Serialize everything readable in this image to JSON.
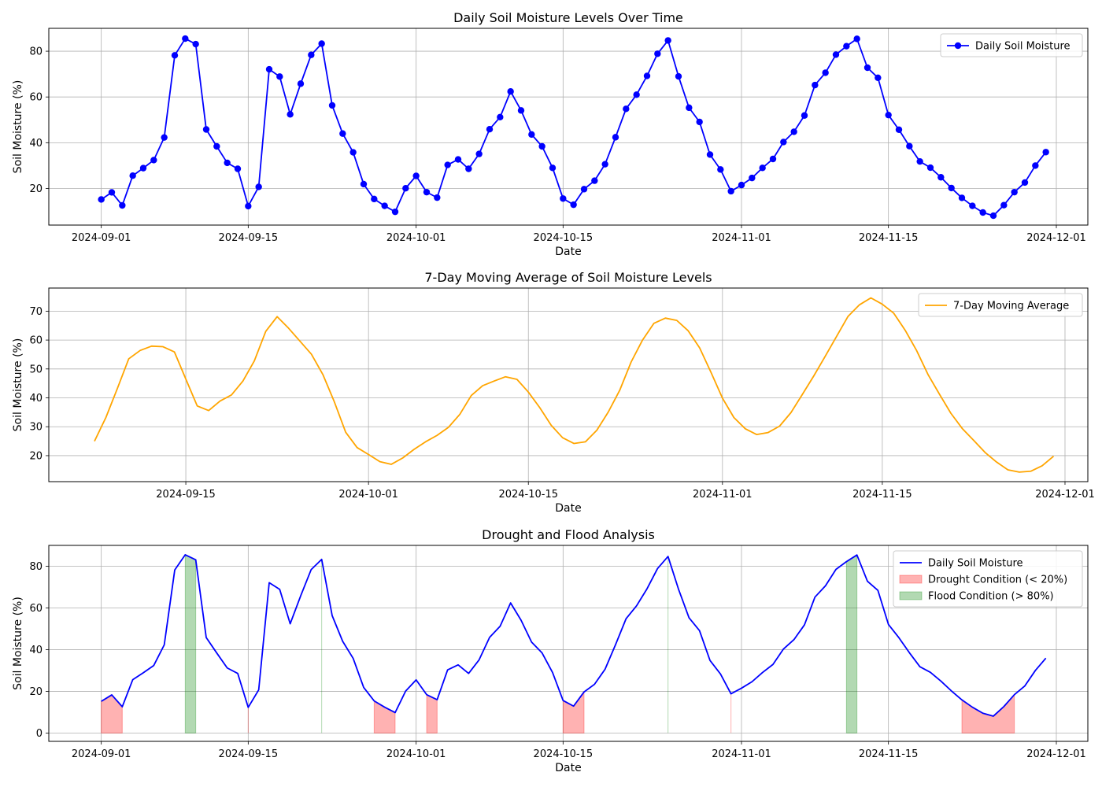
{
  "chart_data": [
    {
      "type": "line",
      "title": "Daily Soil Moisture Levels Over Time",
      "xlabel": "Date",
      "ylabel": "Soil Moisture (%)",
      "x_start": "2024-09-01",
      "xlim": [
        "2024-08-27",
        "2024-12-04"
      ],
      "ylim": [
        4,
        90
      ],
      "xticks": [
        "2024-09-01",
        "2024-09-15",
        "2024-10-01",
        "2024-10-15",
        "2024-11-01",
        "2024-11-15",
        "2024-12-01"
      ],
      "yticks": [
        20,
        40,
        60,
        80
      ],
      "grid": true,
      "legend": "top-right",
      "series": [
        {
          "name": "Daily Soil Moisture",
          "color": "#0000ff",
          "marker": "circle",
          "values": [
            15.2,
            18.3,
            12.6,
            25.6,
            28.9,
            32.4,
            42.3,
            78.2,
            85.5,
            83.1,
            45.8,
            38.4,
            31.2,
            28.6,
            12.3,
            20.7,
            72.1,
            68.9,
            52.4,
            65.8,
            78.4,
            83.3,
            56.3,
            44.0,
            35.8,
            21.9,
            15.4,
            12.4,
            9.8,
            20.1,
            25.5,
            18.4,
            16.0,
            30.3,
            32.7,
            28.6,
            35.1,
            45.9,
            51.2,
            62.4,
            54.1,
            43.6,
            38.4,
            29.0,
            15.6,
            12.9,
            19.7,
            23.4,
            30.6,
            42.4,
            54.8,
            61.0,
            69.2,
            78.9,
            84.7,
            69.0,
            55.3,
            49.1,
            34.8,
            28.3,
            18.8,
            21.5,
            24.6,
            29.0,
            32.9,
            40.3,
            44.8,
            51.9,
            65.2,
            70.6,
            78.5,
            82.2,
            85.4,
            72.8,
            68.4,
            52.1,
            45.7,
            38.5,
            31.8,
            29.1,
            24.9,
            20.2,
            15.9,
            12.4,
            9.5,
            8.1,
            12.7,
            18.4,
            22.6,
            30.0,
            35.9
          ]
        }
      ]
    },
    {
      "type": "line",
      "title": "7-Day Moving Average of Soil Moisture Levels",
      "xlabel": "Date",
      "ylabel": "Soil Moisture (%)",
      "x_start": "2024-09-07",
      "xlim": [
        "2024-09-03",
        "2024-12-03"
      ],
      "ylim": [
        11,
        78
      ],
      "xticks": [
        "2024-09-15",
        "2024-10-01",
        "2024-10-15",
        "2024-11-01",
        "2024-11-15",
        "2024-12-01"
      ],
      "yticks": [
        20,
        30,
        40,
        50,
        60,
        70
      ],
      "grid": true,
      "legend": "top-right",
      "series": [
        {
          "name": "7-Day Moving Average",
          "color": "#ffa500",
          "values": [
            25.0,
            33.2,
            43.2,
            53.5,
            56.4,
            57.9,
            57.7,
            55.9,
            46.5,
            37.2,
            35.6,
            38.9,
            41.0,
            45.8,
            52.8,
            63.0,
            68.1,
            64.1,
            59.6,
            55.1,
            48.1,
            38.7,
            28.1,
            22.8,
            20.4,
            17.9,
            17.0,
            19.2,
            22.2,
            24.8,
            27.0,
            29.8,
            34.3,
            40.8,
            44.2,
            45.8,
            47.3,
            46.4,
            42.0,
            36.6,
            30.5,
            26.2,
            24.2,
            24.8,
            28.8,
            35.1,
            42.6,
            52.4,
            60.0,
            65.8,
            67.6,
            66.8,
            63.2,
            57.3,
            48.8,
            39.9,
            33.2,
            29.3,
            27.3,
            28.0,
            30.2,
            34.9,
            41.2,
            47.6,
            54.4,
            61.3,
            68.2,
            72.2,
            74.6,
            72.4,
            69.3,
            63.4,
            56.4,
            48.1,
            41.3,
            34.7,
            29.4,
            25.3,
            21.1,
            17.8,
            15.1,
            14.3,
            14.6,
            16.5,
            19.8
          ]
        }
      ]
    },
    {
      "type": "area",
      "title": "Drought and Flood Analysis",
      "xlabel": "Date",
      "ylabel": "Soil Moisture (%)",
      "x_start": "2024-09-01",
      "xlim": [
        "2024-08-27",
        "2024-12-04"
      ],
      "ylim": [
        -4,
        90
      ],
      "xticks": [
        "2024-09-01",
        "2024-09-15",
        "2024-10-01",
        "2024-10-15",
        "2024-11-01",
        "2024-11-15",
        "2024-12-01"
      ],
      "yticks": [
        0,
        20,
        40,
        60,
        80
      ],
      "grid": true,
      "legend": "top-right",
      "series": [
        {
          "name": "Daily Soil Moisture",
          "color": "#0000ff",
          "values_from": "chart_data.0.series.0.values"
        },
        {
          "name": "Drought Condition (< 20%)",
          "color": "#ff0000",
          "alpha": 0.3,
          "threshold": 20,
          "condition": "below"
        },
        {
          "name": "Flood Condition (> 80%)",
          "color": "#008000",
          "alpha": 0.3,
          "threshold": 80,
          "condition": "above"
        }
      ]
    }
  ]
}
